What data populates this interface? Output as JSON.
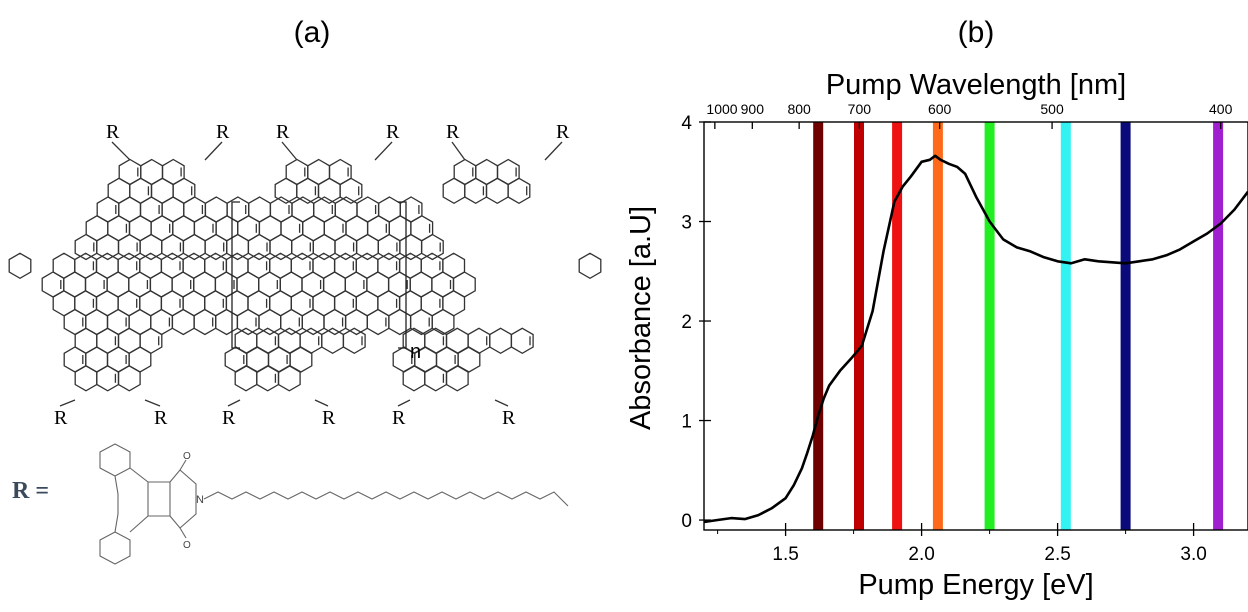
{
  "panel_a": {
    "label": "(a)",
    "substituent_label": "R",
    "repeat_label": "n",
    "r_definition": "R =",
    "atom_o": "O",
    "atom_n": "N"
  },
  "panel_b": {
    "label": "(b)"
  },
  "chart_data": {
    "type": "line",
    "title": "",
    "xlabel": "Pump Energy [eV]",
    "ylabel": "Absorbance [a.U]",
    "x2label": "Pump Wavelength [nm]",
    "xlim": [
      1.2,
      3.2
    ],
    "ylim": [
      -0.1,
      4.0
    ],
    "xticks": [
      1.5,
      2.0,
      2.5,
      3.0
    ],
    "xtick_labels": [
      "1.5",
      "2.0",
      "2.5",
      "3.0"
    ],
    "yticks": [
      0,
      1,
      2,
      3,
      4
    ],
    "ytick_labels": [
      "0",
      "1",
      "2",
      "3",
      "4"
    ],
    "x2ticks_nm": [
      1000,
      900,
      800,
      700,
      600,
      500,
      400
    ],
    "x2tick_labels": [
      "1000",
      "900",
      "800",
      "700",
      "600",
      "500",
      "400"
    ],
    "grid": false,
    "series": [
      {
        "color": "#000000",
        "x": [
          1.2,
          1.25,
          1.3,
          1.35,
          1.4,
          1.45,
          1.5,
          1.53,
          1.56,
          1.58,
          1.6,
          1.62,
          1.64,
          1.66,
          1.7,
          1.74,
          1.78,
          1.82,
          1.86,
          1.9,
          1.93,
          1.96,
          2.0,
          2.03,
          2.05,
          2.07,
          2.1,
          2.13,
          2.16,
          2.2,
          2.25,
          2.3,
          2.35,
          2.4,
          2.45,
          2.5,
          2.55,
          2.6,
          2.65,
          2.7,
          2.75,
          2.8,
          2.85,
          2.9,
          2.95,
          3.0,
          3.05,
          3.1,
          3.15,
          3.2
        ],
        "y": [
          -0.02,
          0.0,
          0.02,
          0.01,
          0.05,
          0.12,
          0.22,
          0.35,
          0.52,
          0.68,
          0.85,
          1.05,
          1.22,
          1.35,
          1.5,
          1.62,
          1.75,
          2.1,
          2.7,
          3.2,
          3.35,
          3.45,
          3.6,
          3.62,
          3.66,
          3.62,
          3.58,
          3.55,
          3.48,
          3.25,
          3.0,
          2.82,
          2.74,
          2.7,
          2.64,
          2.6,
          2.58,
          2.62,
          2.6,
          2.59,
          2.58,
          2.6,
          2.62,
          2.66,
          2.72,
          2.8,
          2.88,
          2.98,
          3.12,
          3.3
        ]
      }
    ],
    "pump_lines": [
      {
        "energy_ev": 1.62,
        "color": "#6e0000"
      },
      {
        "energy_ev": 1.77,
        "color": "#c00000"
      },
      {
        "energy_ev": 1.91,
        "color": "#ee1111"
      },
      {
        "energy_ev": 2.06,
        "color": "#ff6a1a"
      },
      {
        "energy_ev": 2.25,
        "color": "#22ee22"
      },
      {
        "energy_ev": 2.53,
        "color": "#33f2f2"
      },
      {
        "energy_ev": 2.75,
        "color": "#0a0a7a"
      },
      {
        "energy_ev": 3.09,
        "color": "#a020d0"
      }
    ]
  }
}
